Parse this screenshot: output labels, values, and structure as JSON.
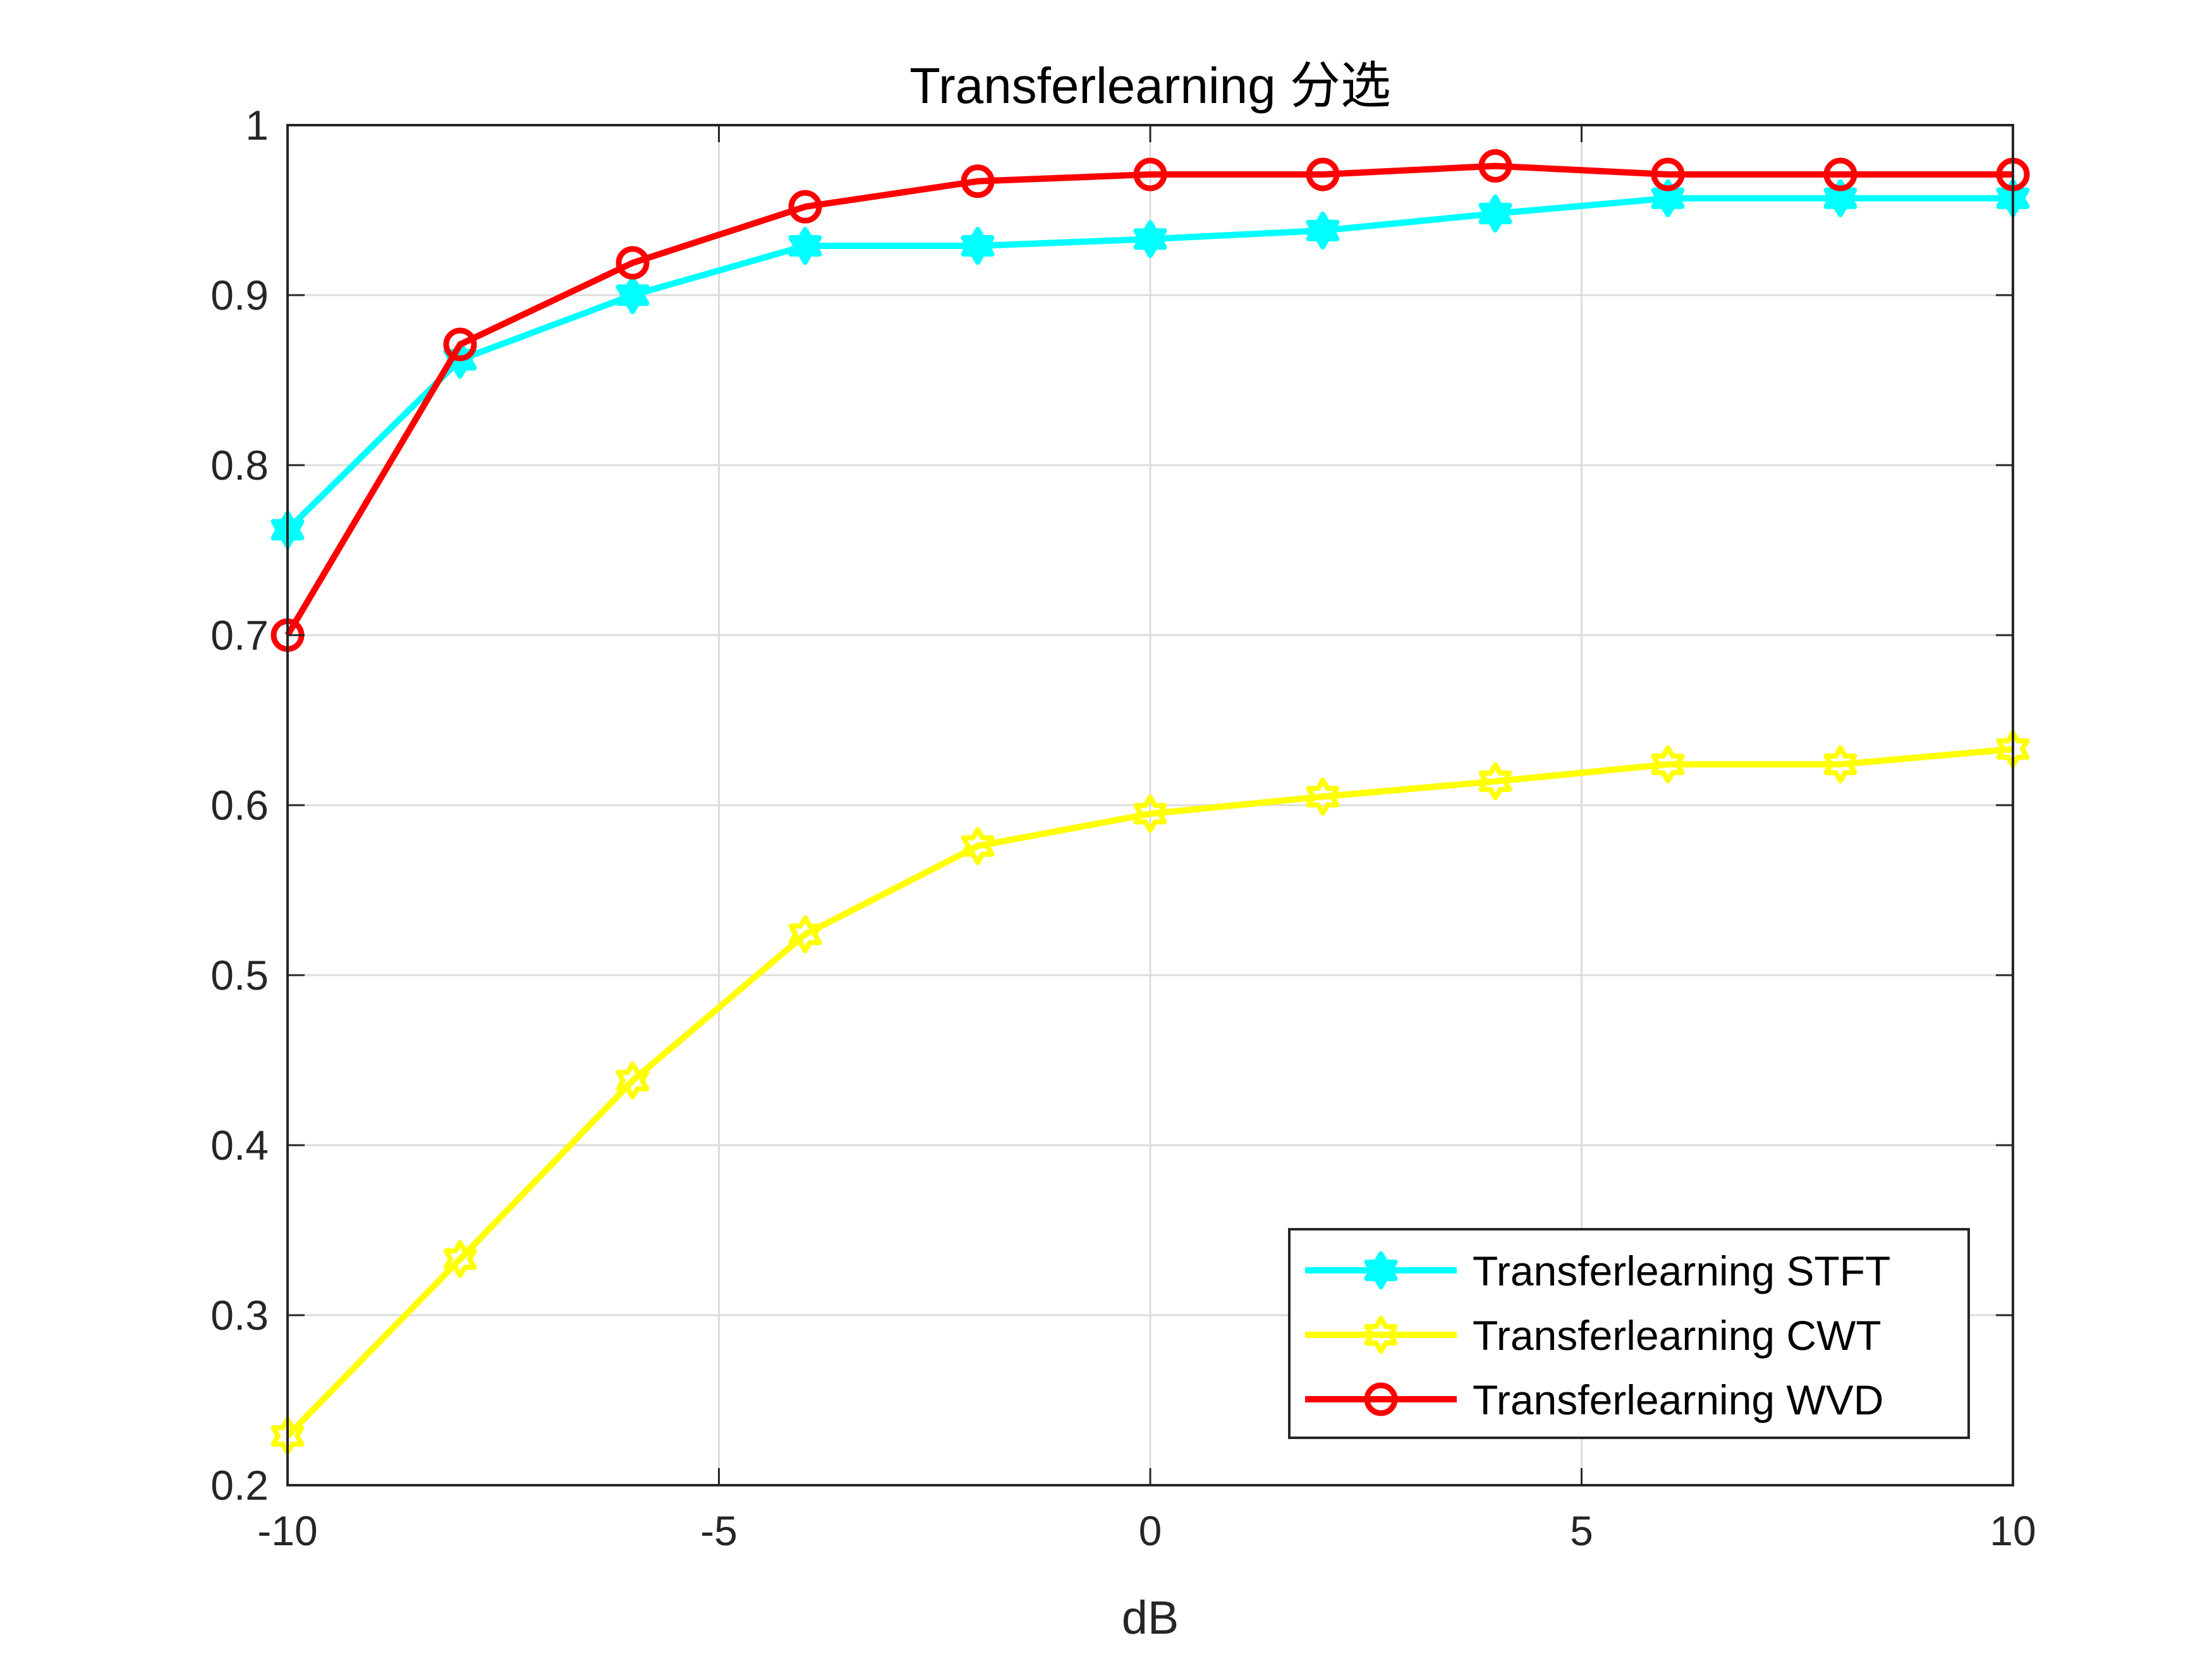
{
  "chart_data": {
    "type": "line",
    "title": "Transferlearning 分选",
    "xlabel": "dB",
    "ylabel": "",
    "xlim": [
      -10,
      10
    ],
    "ylim": [
      0.2,
      1
    ],
    "x_ticks": [
      "-10",
      "-5",
      "0",
      "5",
      "10"
    ],
    "y_ticks": [
      "0.2",
      "0.3",
      "0.4",
      "0.5",
      "0.6",
      "0.7",
      "0.8",
      "0.9",
      "1"
    ],
    "grid": true,
    "legend_position": "bottom-right",
    "x": [
      -10,
      -8,
      -6,
      -4,
      -2,
      0,
      2,
      4,
      6,
      8,
      10
    ],
    "series": [
      {
        "name": "Transferlearning STFT",
        "color": "#00ffff",
        "marker": "hexagram",
        "values": [
          0.762,
          0.862,
          0.9,
          0.929,
          0.929,
          0.933,
          0.938,
          0.948,
          0.957,
          0.957,
          0.957
        ]
      },
      {
        "name": "Transferlearning CWT",
        "color": "#ffff00",
        "marker": "hexagram",
        "values": [
          0.229,
          0.333,
          0.438,
          0.524,
          0.576,
          0.595,
          0.605,
          0.614,
          0.624,
          0.624,
          0.633
        ]
      },
      {
        "name": "Transferlearning WVD",
        "color": "#ff0000",
        "marker": "circle",
        "values": [
          0.7,
          0.871,
          0.919,
          0.952,
          0.967,
          0.971,
          0.971,
          0.976,
          0.971,
          0.971,
          0.971
        ]
      }
    ]
  }
}
